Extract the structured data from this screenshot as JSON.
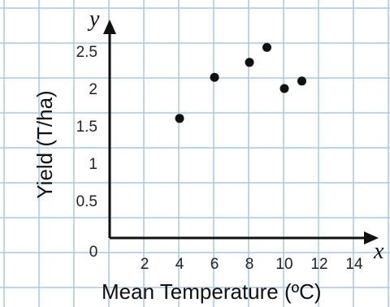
{
  "chart_data": {
    "type": "scatter",
    "xlabel": "Mean Temperature (ºC)",
    "ylabel": "Yield (T/ha)",
    "x_axis_symbol": "x",
    "y_axis_symbol": "y",
    "origin_label": "0",
    "xlim": [
      0,
      15
    ],
    "ylim": [
      0,
      2.9
    ],
    "x_ticks": [
      2,
      4,
      6,
      8,
      10,
      12,
      14
    ],
    "y_ticks": [
      0.5,
      1,
      1.5,
      2,
      2.5
    ],
    "x_tick_labels": [
      "2",
      "4",
      "6",
      "8",
      "10",
      "12",
      "14"
    ],
    "y_tick_labels": [
      "0.5",
      "1",
      "1.5",
      "2",
      "2.5"
    ],
    "grid": true,
    "points": [
      {
        "x": 4,
        "y": 1.6
      },
      {
        "x": 6,
        "y": 2.15
      },
      {
        "x": 8,
        "y": 2.35
      },
      {
        "x": 9,
        "y": 2.55
      },
      {
        "x": 10,
        "y": 2.0
      },
      {
        "x": 11,
        "y": 2.1
      }
    ],
    "colors": {
      "grid": "#a9c9e6",
      "axis": "#111111",
      "point": "#111111"
    }
  }
}
